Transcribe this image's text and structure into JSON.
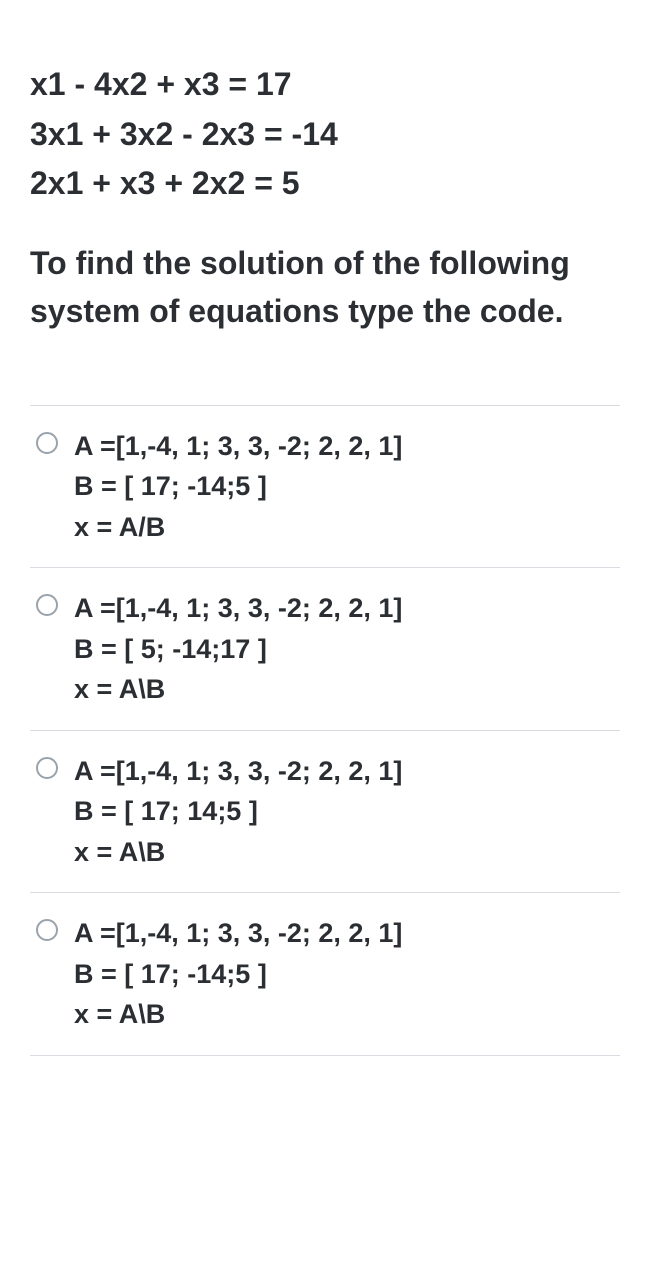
{
  "question": {
    "equations": [
      "x1 - 4x2 + x3 = 17",
      "3x1 + 3x2 - 2x3 = -14",
      "2x1 + x3 + 2x2 = 5"
    ],
    "prompt": "To find the solution of the following system of equations type the code."
  },
  "options": [
    {
      "lines": [
        "A =[1,-4, 1; 3, 3, -2; 2, 2, 1]",
        "B = [ 17; -14;5 ]",
        "x = A/B"
      ]
    },
    {
      "lines": [
        "A =[1,-4, 1; 3, 3, -2; 2, 2, 1]",
        "B = [ 5; -14;17 ]",
        "x = A\\B"
      ]
    },
    {
      "lines": [
        "A =[1,-4, 1; 3, 3, -2; 2, 2, 1]",
        "B = [ 17; 14;5 ]",
        "x = A\\B"
      ]
    },
    {
      "lines": [
        "A =[1,-4, 1; 3, 3, -2; 2, 2, 1]",
        "B = [ 17; -14;5 ]",
        "x = A\\B"
      ]
    }
  ],
  "styles": {
    "text_color": "#2b2f33",
    "divider_color": "#d9dde1",
    "radio_border_color": "#9aa3ab",
    "background_color": "#ffffff",
    "equation_fontsize": 32,
    "prompt_fontsize": 32,
    "option_fontsize": 27,
    "font_weight": 600
  }
}
